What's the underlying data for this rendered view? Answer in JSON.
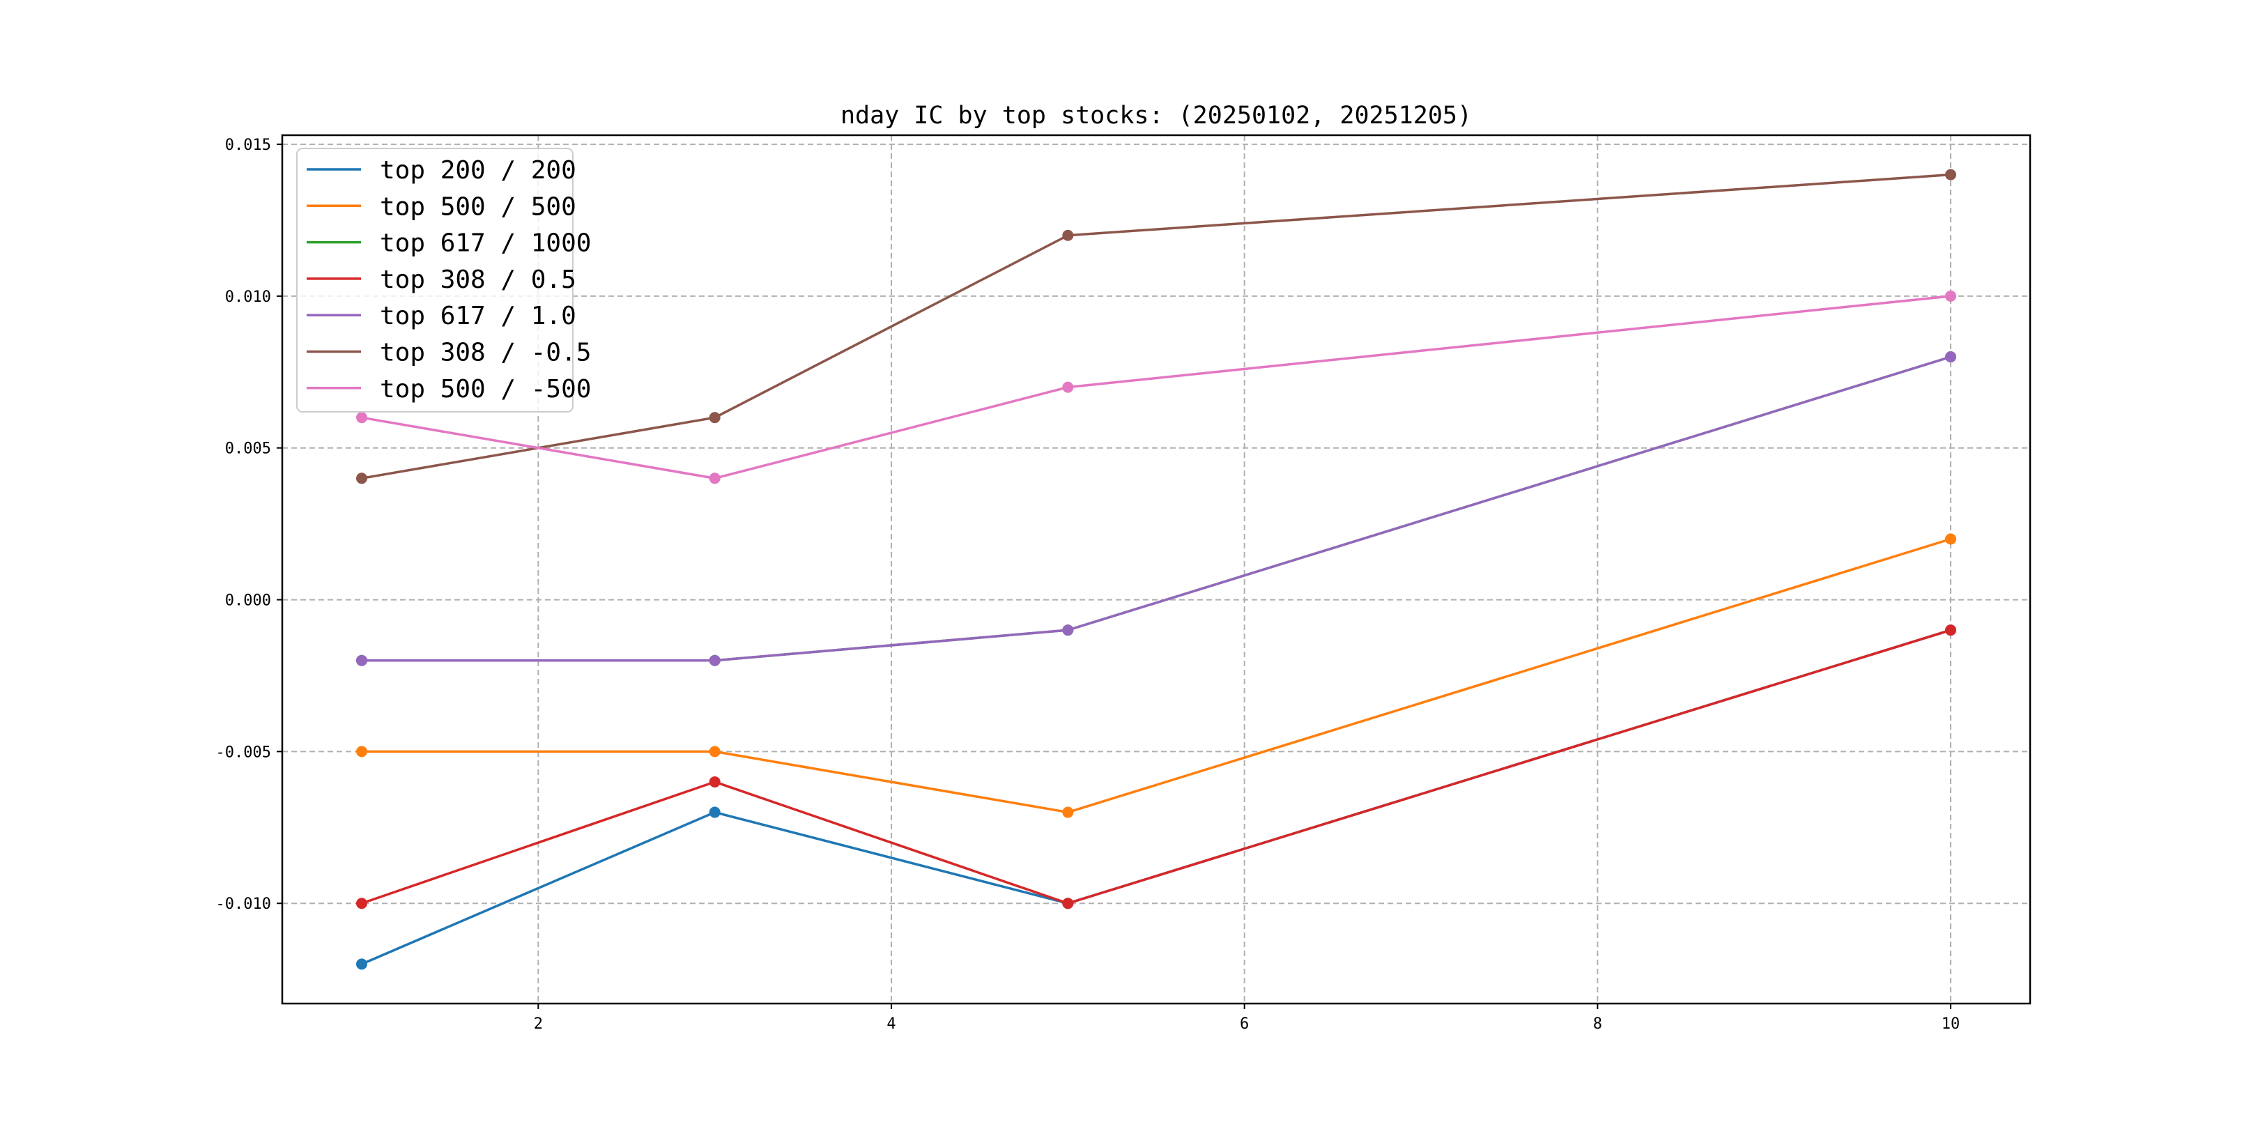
{
  "chart_data": {
    "type": "line",
    "title": "nday IC by top stocks: (20250102, 20251205)",
    "xlabel": "",
    "ylabel": "",
    "x": [
      1,
      3,
      5,
      10
    ],
    "xlim": [
      0.55,
      10.45
    ],
    "ylim": [
      -0.0133,
      0.0153
    ],
    "xticks": [
      2,
      4,
      6,
      8,
      10
    ],
    "xtick_labels": [
      "2",
      "4",
      "6",
      "8",
      "10"
    ],
    "yticks": [
      -0.01,
      -0.005,
      0.0,
      0.005,
      0.01,
      0.015
    ],
    "ytick_labels": [
      "-0.010",
      "-0.005",
      "0.000",
      "0.005",
      "0.010",
      "0.015"
    ],
    "grid": true,
    "legend_position": "top-left",
    "series": [
      {
        "name": "top 200 / 200",
        "color": "#1f77b4",
        "values": [
          -0.012,
          -0.007,
          -0.01,
          -0.001
        ]
      },
      {
        "name": "top 500 / 500",
        "color": "#ff7f0e",
        "values": [
          -0.005,
          -0.005,
          -0.007,
          0.002
        ]
      },
      {
        "name": "top 617 / 1000",
        "color": "#2ca02c",
        "values": [
          -0.002,
          -0.002,
          -0.001,
          0.008
        ]
      },
      {
        "name": "top 308 / 0.5",
        "color": "#d62728",
        "values": [
          -0.01,
          -0.006,
          -0.01,
          -0.001
        ]
      },
      {
        "name": "top 617 / 1.0",
        "color": "#9467bd",
        "values": [
          -0.002,
          -0.002,
          -0.001,
          0.008
        ]
      },
      {
        "name": "top 308 / -0.5",
        "color": "#8c564b",
        "values": [
          0.004,
          0.006,
          0.012,
          0.014
        ]
      },
      {
        "name": "top 500 / -500",
        "color": "#e377c2",
        "values": [
          0.006,
          0.004,
          0.007,
          0.01
        ]
      }
    ]
  }
}
